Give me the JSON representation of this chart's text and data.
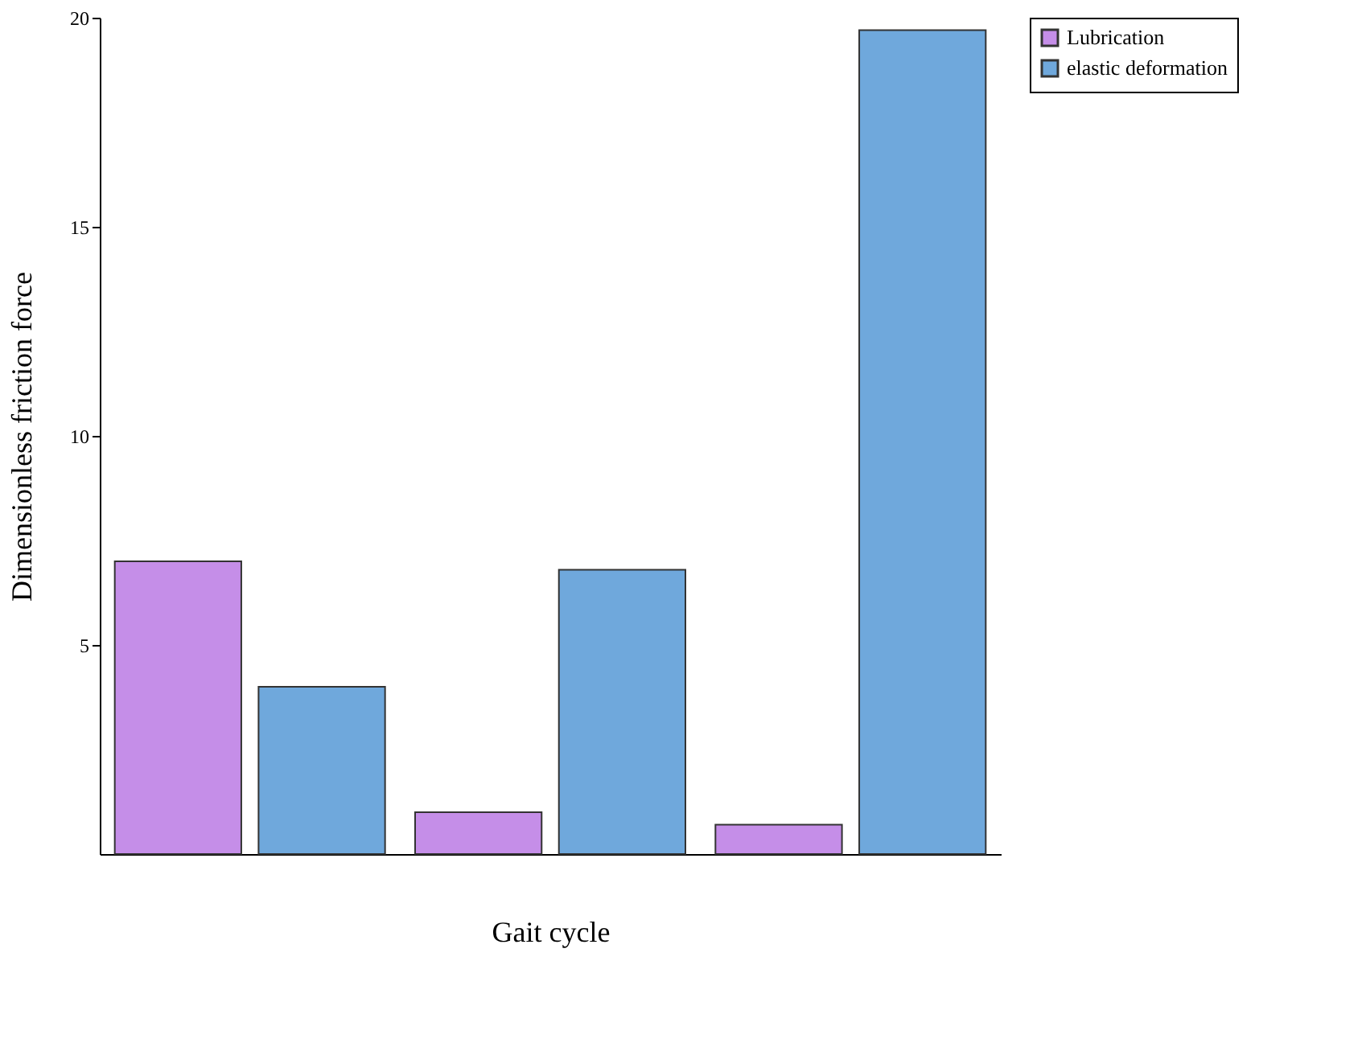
{
  "chart_data": {
    "type": "bar",
    "xlabel": "Gait cycle",
    "ylabel": "Dimensionless   friction force",
    "categories": [
      null,
      null,
      null
    ],
    "series": [
      {
        "name": "Lubrication",
        "color": "#c58ee8",
        "values": [
          7.0,
          1.0,
          0.7
        ]
      },
      {
        "name": "elastic deformation",
        "color": "#6fa8dc",
        "values": [
          4.0,
          6.8,
          19.7
        ]
      }
    ],
    "ylim": [
      0,
      20
    ],
    "yticks": [
      5,
      10,
      15,
      20
    ],
    "grid": false,
    "legend": "right",
    "tick_labels": "y"
  }
}
